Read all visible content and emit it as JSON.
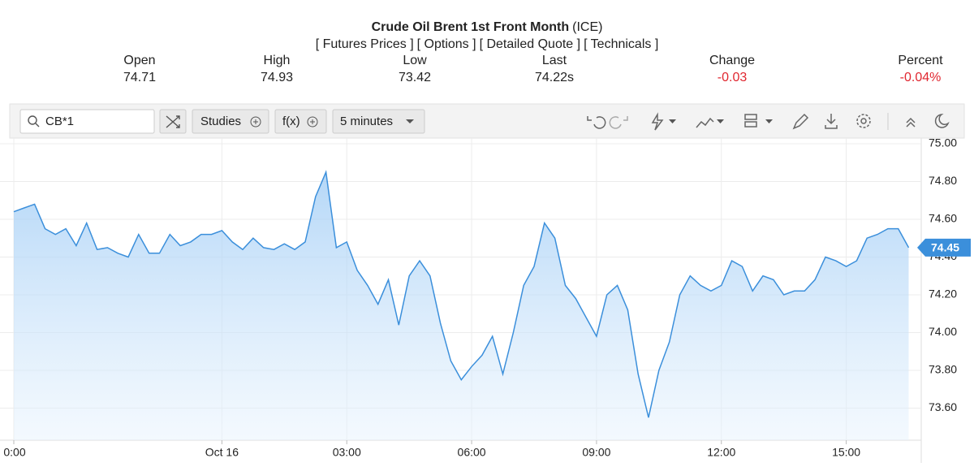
{
  "header": {
    "title": "Crude Oil Brent 1st Front Month",
    "exchange": "(ICE)",
    "links": [
      "[ Futures Prices ]",
      "[ Options ]",
      "[ Detailed Quote ]",
      "[ Technicals ]"
    ]
  },
  "quote": [
    {
      "label": "Open",
      "value": "74.71"
    },
    {
      "label": "High",
      "value": "74.93"
    },
    {
      "label": "Low",
      "value": "73.42"
    },
    {
      "label": "Last",
      "value": "74.22s"
    },
    {
      "label": "Change",
      "value": "-0.03"
    },
    {
      "label": "Percent",
      "value": "-0.04%"
    }
  ],
  "toolbar": {
    "symbol": "CB*1",
    "studies": "Studies",
    "fx": "f(x)",
    "interval": "5 minutes"
  },
  "chart_data": {
    "type": "line",
    "color": "#3b8fdb",
    "values": [
      74.64,
      74.66,
      74.68,
      74.55,
      74.52,
      74.55,
      74.46,
      74.58,
      74.44,
      74.45,
      74.42,
      74.4,
      74.52,
      74.42,
      74.42,
      74.52,
      74.46,
      74.48,
      74.52,
      74.52,
      74.54,
      74.48,
      74.44,
      74.5,
      74.45,
      74.44,
      74.47,
      74.44,
      74.48,
      74.72,
      74.85,
      74.45,
      74.48,
      74.33,
      74.25,
      74.15,
      74.28,
      74.04,
      74.3,
      74.38,
      74.3,
      74.05,
      73.85,
      73.75,
      73.82,
      73.88,
      73.98,
      73.78,
      74.0,
      74.25,
      74.35,
      74.58,
      74.5,
      74.25,
      74.18,
      74.08,
      73.98,
      74.2,
      74.25,
      74.12,
      73.78,
      73.55,
      73.8,
      73.95,
      74.2,
      74.3,
      74.25,
      74.22,
      74.25,
      74.38,
      74.35,
      74.22,
      74.3,
      74.28,
      74.2,
      74.22,
      74.22,
      74.28,
      74.4,
      74.38,
      74.35,
      74.38,
      74.5,
      74.52,
      74.55,
      74.55,
      74.45
    ],
    "xticks": [
      {
        "value": 0,
        "label": "0:00"
      },
      {
        "value": 20,
        "label": "Oct 16"
      },
      {
        "value": 32,
        "label": "03:00"
      },
      {
        "value": 44,
        "label": "06:00"
      },
      {
        "value": 56,
        "label": "09:00"
      },
      {
        "value": 68,
        "label": "12:00"
      },
      {
        "value": 80,
        "label": "15:00"
      }
    ],
    "ylim": [
      73.43,
      75.03
    ],
    "yticks": [
      {
        "value": 75,
        "label": "75.00"
      },
      {
        "value": 74.8,
        "label": "74.80"
      },
      {
        "value": 74.6,
        "label": "74.60"
      },
      {
        "value": 74.4,
        "label": "74.40"
      },
      {
        "value": 74.2,
        "label": "74.20"
      },
      {
        "value": 74,
        "label": "74.00"
      },
      {
        "value": 73.8,
        "label": "73.80"
      },
      {
        "value": 73.6,
        "label": "73.60"
      }
    ],
    "last_price": {
      "value": 74.45,
      "label": "74.45"
    },
    "grid": true
  }
}
